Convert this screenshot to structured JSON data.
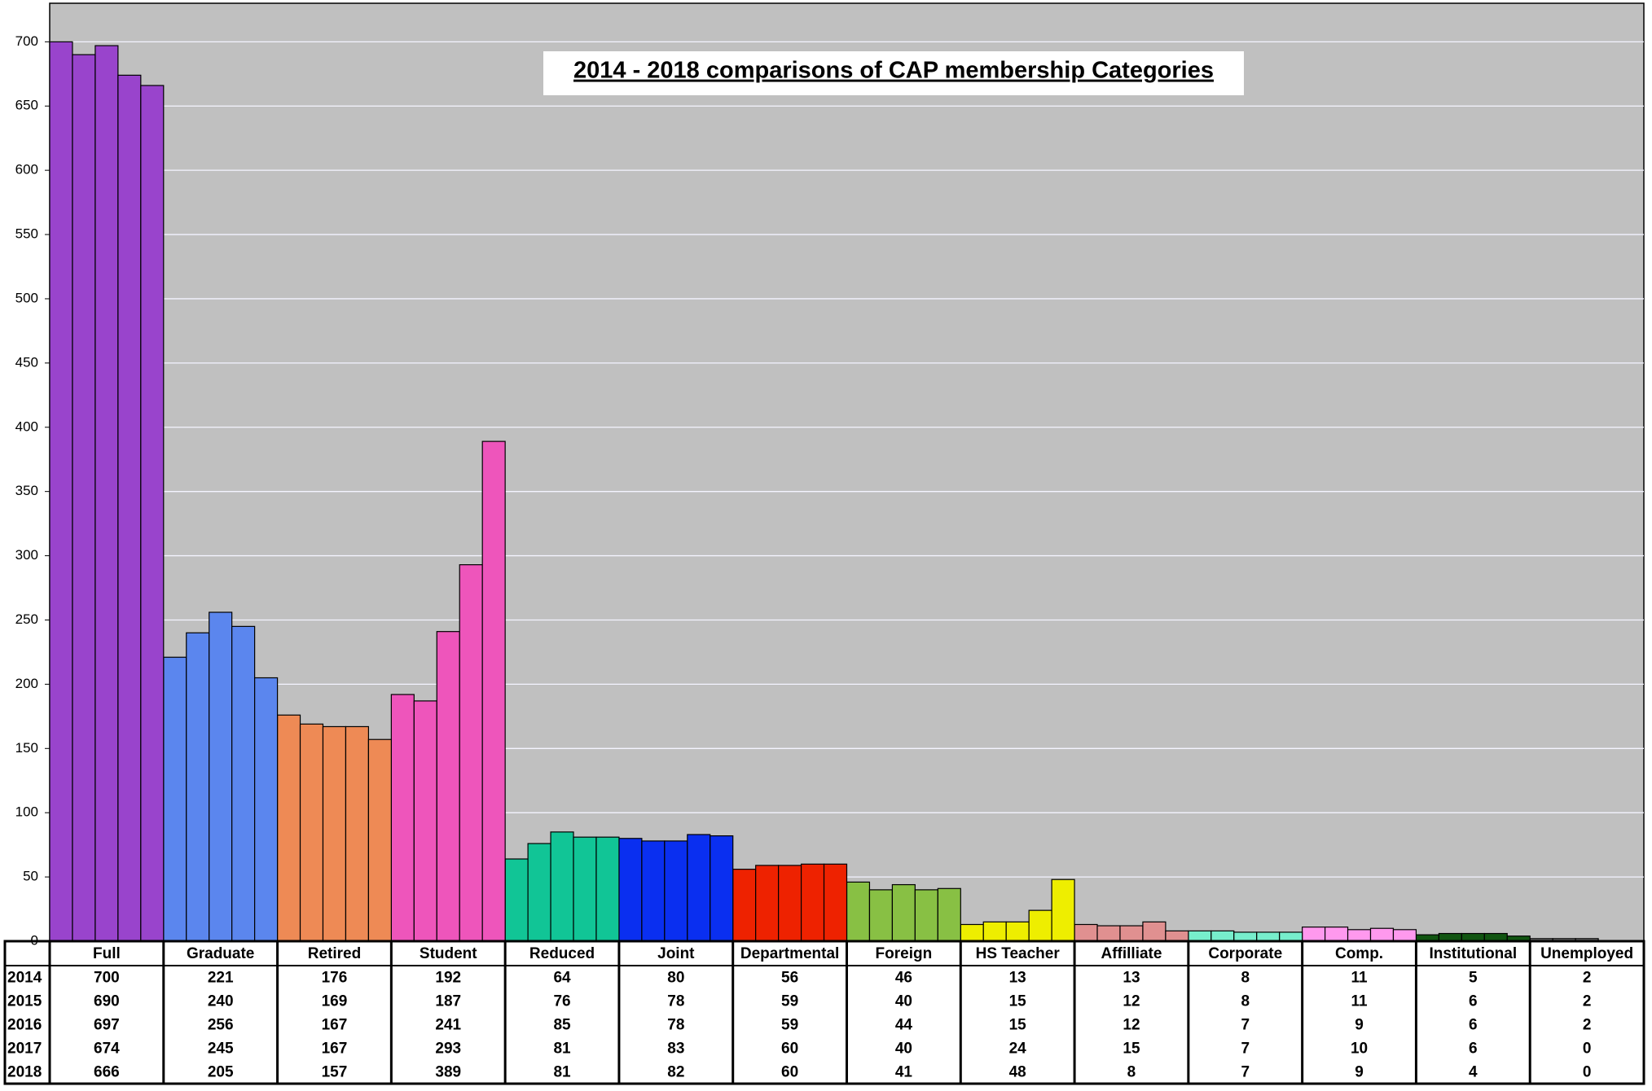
{
  "chart_data": {
    "type": "bar",
    "title": "2014 - 2018 comparisons of CAP membership Categories",
    "categories": [
      "Full",
      "Graduate",
      "Retired",
      "Student",
      "Reduced",
      "Joint",
      "Departmental",
      "Foreign",
      "HS Teacher",
      "Affilliate",
      "Corporate",
      "Comp.",
      "Institutional",
      "Unemployed"
    ],
    "colors": [
      "#9944cc",
      "#5b86ee",
      "#ee8a55",
      "#ee55bb",
      "#11c596",
      "#0a2ff0",
      "#ee2200",
      "#88c044",
      "#eeee00",
      "#e09090",
      "#77eecc",
      "#ff99ee",
      "#115511",
      "#777777"
    ],
    "series": [
      {
        "name": "2014",
        "values": [
          700,
          221,
          176,
          192,
          64,
          80,
          56,
          46,
          13,
          13,
          8,
          11,
          5,
          2
        ]
      },
      {
        "name": "2015",
        "values": [
          690,
          240,
          169,
          187,
          76,
          78,
          59,
          40,
          15,
          12,
          8,
          11,
          6,
          2
        ]
      },
      {
        "name": "2016",
        "values": [
          697,
          256,
          167,
          241,
          85,
          78,
          59,
          44,
          15,
          12,
          7,
          9,
          6,
          2
        ]
      },
      {
        "name": "2017",
        "values": [
          674,
          245,
          167,
          293,
          81,
          83,
          60,
          40,
          24,
          15,
          7,
          10,
          6,
          0
        ]
      },
      {
        "name": "2018",
        "values": [
          666,
          205,
          157,
          389,
          81,
          82,
          60,
          41,
          48,
          8,
          7,
          9,
          4,
          0
        ]
      }
    ],
    "ylim": [
      0,
      730
    ],
    "yticks": [
      0,
      50,
      100,
      150,
      200,
      250,
      300,
      350,
      400,
      450,
      500,
      550,
      600,
      650,
      700
    ],
    "grid": true
  }
}
